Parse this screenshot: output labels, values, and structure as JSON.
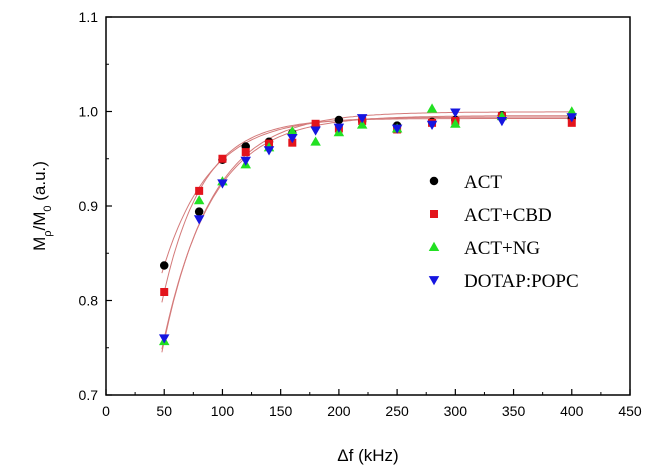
{
  "chart_data": {
    "type": "scatter",
    "title": "",
    "xlabel": "Δf (kHz)",
    "ylabel": {
      "main": "M",
      "sub1": "ρ",
      "mid": "/M",
      "sub2": "0",
      "tail": " (a.u.)"
    },
    "xlim": [
      0,
      450
    ],
    "ylim": [
      0.7,
      1.1
    ],
    "x_ticks": [
      "0",
      "50",
      "100",
      "150",
      "200",
      "250",
      "300",
      "350",
      "400",
      "450"
    ],
    "y_ticks": [
      "0.7",
      "0.8",
      "0.9",
      "1.0",
      "1.1"
    ],
    "grid": false,
    "legend_position": "right",
    "fit_curve_color": "#d47a7a",
    "series": [
      {
        "name": "ACT",
        "marker": "circle",
        "color": "#000000",
        "x": [
          50,
          80,
          100,
          120,
          140,
          160,
          180,
          200,
          220,
          250,
          280,
          300,
          340,
          400
        ],
        "y": [
          0.837,
          0.894,
          0.949,
          0.963,
          0.968,
          0.977,
          0.984,
          0.991,
          0.99,
          0.985,
          0.989,
          0.991,
          0.996,
          0.993
        ]
      },
      {
        "name": "ACT+CBD",
        "marker": "square",
        "color": "#e3141c",
        "x": [
          50,
          80,
          100,
          120,
          140,
          160,
          180,
          200,
          220,
          250,
          280,
          300,
          340,
          400
        ],
        "y": [
          0.809,
          0.916,
          0.95,
          0.957,
          0.966,
          0.967,
          0.987,
          0.982,
          0.99,
          0.981,
          0.988,
          0.99,
          0.995,
          0.988
        ]
      },
      {
        "name": "ACT+NG",
        "marker": "triangle-up",
        "color": "#22e022",
        "x": [
          50,
          80,
          100,
          120,
          140,
          160,
          180,
          200,
          220,
          250,
          280,
          300,
          340,
          400
        ],
        "y": [
          0.757,
          0.906,
          0.926,
          0.944,
          0.962,
          0.979,
          0.968,
          0.978,
          0.986,
          0.982,
          1.003,
          0.987,
          0.995,
          1.0
        ]
      },
      {
        "name": "DOTAP:POPC",
        "marker": "triangle-down",
        "color": "#1515e0",
        "x": [
          50,
          80,
          100,
          120,
          140,
          160,
          180,
          200,
          220,
          250,
          280,
          300,
          340,
          400
        ],
        "y": [
          0.76,
          0.886,
          0.924,
          0.948,
          0.959,
          0.972,
          0.98,
          0.983,
          0.993,
          0.982,
          0.986,
          0.999,
          0.99,
          0.994
        ]
      }
    ]
  }
}
